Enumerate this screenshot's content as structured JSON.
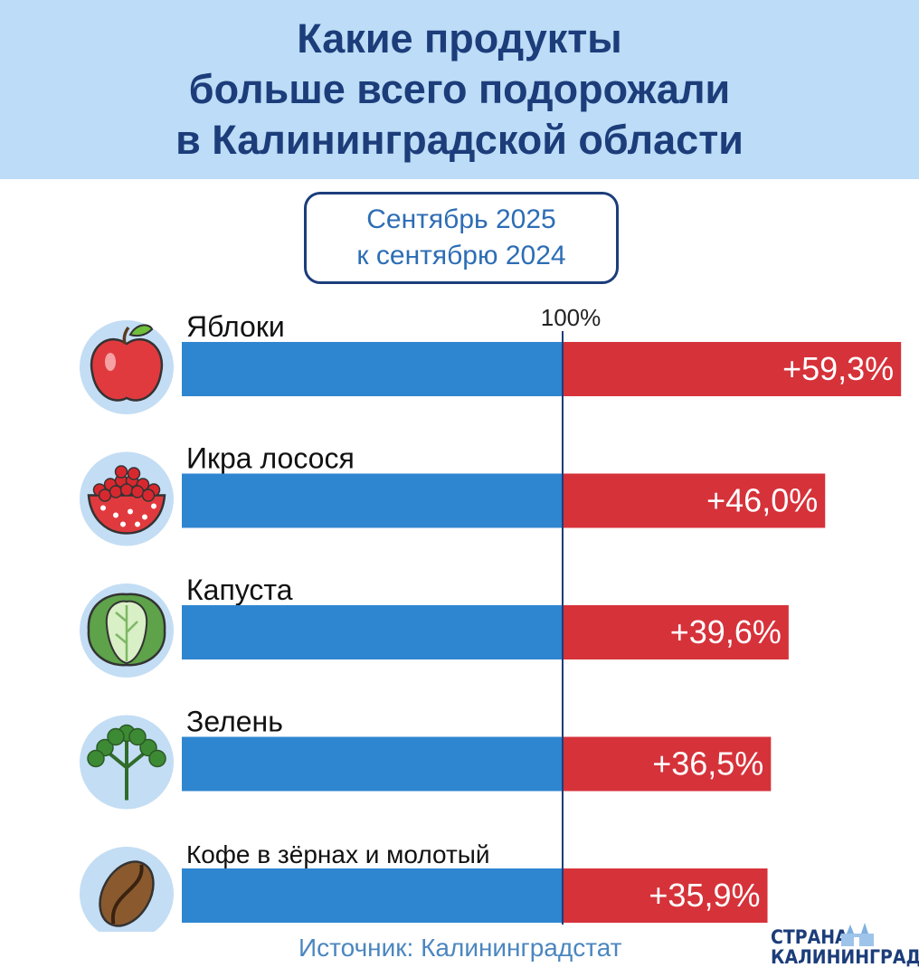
{
  "header": {
    "title_lines": [
      "Какие продукты",
      "больше всего подорожали",
      "в Калининградской области"
    ]
  },
  "period": {
    "lines": [
      "Сентябрь 2025",
      "к сентябрю 2024"
    ]
  },
  "chart_data": {
    "type": "bar",
    "orientation": "horizontal",
    "stacked": true,
    "baseline_label": "100%",
    "categories": [
      "Яблоки",
      "Икра лосося",
      "Капуста",
      "Зелень",
      "Кофе в зёрнах и молотый"
    ],
    "base_value": 100,
    "values": [
      59.3,
      46.0,
      39.6,
      36.5,
      35.9
    ],
    "value_labels": [
      "+59,3%",
      "+46,0%",
      "+39,6%",
      "+36,5%",
      "+35,9%"
    ],
    "icons": [
      "apple-icon",
      "salmon-caviar-icon",
      "cabbage-icon",
      "parsley-icon",
      "coffee-bean-icon"
    ],
    "colors": {
      "base": "#2f86d0",
      "increase": "#d6323a",
      "baseline": "#1c3d7a",
      "icon_circle": "#c3ddf4"
    },
    "grid": false
  },
  "source": {
    "text": "Источник: Калининградстат"
  },
  "logo": {
    "line1": "СТРАНА",
    "line2": "КАЛИНИНГРАД"
  }
}
